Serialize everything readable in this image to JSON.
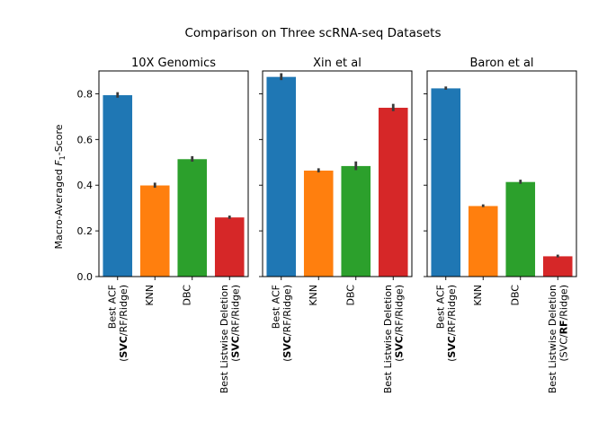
{
  "chart_data": {
    "type": "bar",
    "title": "Comparison on Three scRNA-seq Datasets",
    "ylabel": {
      "prefix": "Macro-Averaged ",
      "symbol": "F",
      "subscript": "1",
      "suffix": "-Score"
    },
    "ylim": [
      0,
      0.9
    ],
    "yticks": [
      0.0,
      0.2,
      0.4,
      0.6,
      0.8
    ],
    "ytick_labels": [
      "0.0",
      "0.2",
      "0.4",
      "0.6",
      "0.8"
    ],
    "colors": [
      "#1f77b4",
      "#ff7f0e",
      "#2ca02c",
      "#d62728"
    ],
    "categories": [
      "Best ACF",
      "KNN",
      "DBC",
      "Best Listwise Deletion"
    ],
    "panels": [
      {
        "title": "10X Genomics",
        "sublabels": [
          [
            "(",
            "SVC",
            "/RF/Ridge)"
          ],
          null,
          null,
          [
            "(",
            "SVC",
            "/RF/Ridge)"
          ]
        ],
        "values": [
          0.795,
          0.4,
          0.515,
          0.26
        ],
        "errors": [
          0.012,
          0.011,
          0.012,
          0.007
        ]
      },
      {
        "title": "Xin et al",
        "sublabels": [
          [
            "(",
            "SVC",
            "/RF/Ridge)"
          ],
          null,
          null,
          [
            "(",
            "SVC",
            "/RF/Ridge)"
          ]
        ],
        "values": [
          0.875,
          0.465,
          0.485,
          0.74
        ],
        "errors": [
          0.015,
          0.009,
          0.019,
          0.016
        ]
      },
      {
        "title": "Baron et al",
        "sublabels": [
          [
            "(",
            "SVC",
            "/RF/Ridge)"
          ],
          null,
          null,
          [
            "(SVC/",
            "RF",
            "/Ridge)"
          ]
        ],
        "values": [
          0.825,
          0.31,
          0.415,
          0.09
        ],
        "errors": [
          0.007,
          0.006,
          0.009,
          0.006
        ]
      }
    ]
  }
}
